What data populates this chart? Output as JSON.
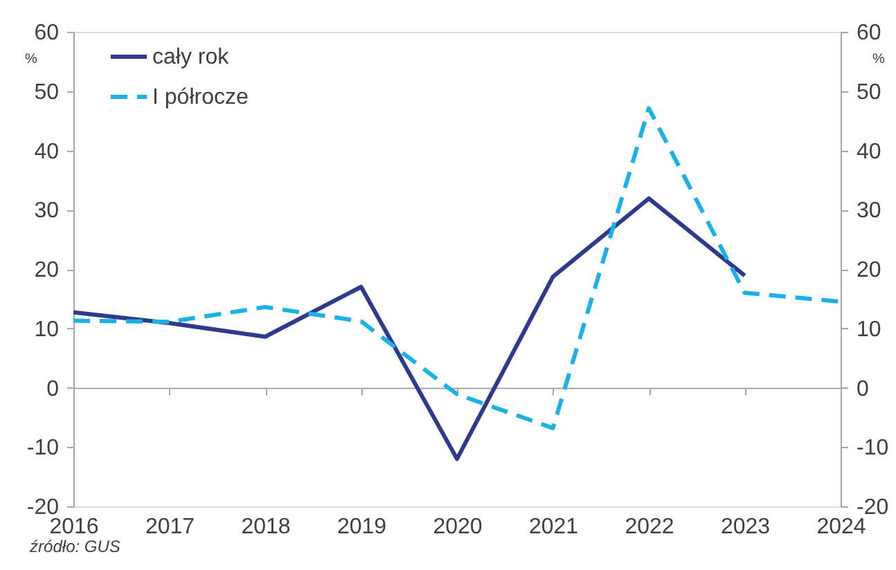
{
  "chart_data": {
    "type": "line",
    "categories": [
      "2016",
      "2017",
      "2018",
      "2019",
      "2020",
      "2021",
      "2022",
      "2023",
      "2024"
    ],
    "series": [
      {
        "name": "cały rok",
        "color": "#2f3a8f",
        "line_style": "solid",
        "values": [
          12.7,
          10.9,
          8.6,
          17.0,
          -12.0,
          18.7,
          31.9,
          18.9,
          null
        ]
      },
      {
        "name": "I półrocze",
        "color": "#1ab0e8",
        "line_style": "dashed",
        "values": [
          11.3,
          11.1,
          13.6,
          11.2,
          -1.1,
          -6.8,
          47.1,
          16.0,
          14.5
        ]
      }
    ],
    "ylim": [
      -20,
      60
    ],
    "yticks": [
      -20,
      -10,
      0,
      10,
      20,
      30,
      40,
      50,
      60
    ],
    "ylabel": "%",
    "y2lim": [
      -20,
      60
    ],
    "y2ticks": [
      -20,
      -10,
      0,
      10,
      20,
      30,
      40,
      50,
      60
    ],
    "y2label": "%",
    "legend": "top left",
    "annotations": [
      "źródło: GUS"
    ]
  }
}
